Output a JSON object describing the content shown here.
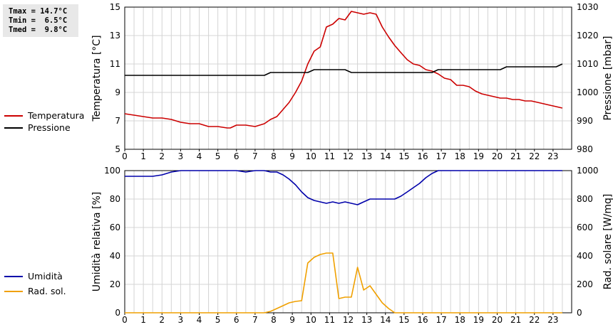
{
  "stats": {
    "tmax": "Tmax = 14.7°C",
    "tmin": "Tmin =  6.5°C",
    "tmed": "Tmed =  9.8°C"
  },
  "legend_top": [
    {
      "label": "Temperatura",
      "color": "#cc0000"
    },
    {
      "label": "Pressione",
      "color": "#000000"
    }
  ],
  "legend_bottom": [
    {
      "label": "Umidità",
      "color": "#0000aa"
    },
    {
      "label": "Rad. sol.",
      "color": "#f0a000"
    }
  ],
  "chart_data": [
    {
      "type": "line",
      "xlim": [
        0,
        24
      ],
      "x_ticks": [
        "0",
        "1",
        "2",
        "3",
        "4",
        "5",
        "6",
        "7",
        "8",
        "9",
        "10",
        "11",
        "12",
        "13",
        "14",
        "15",
        "16",
        "17",
        "18",
        "19",
        "20",
        "21",
        "22",
        "23"
      ],
      "ylabel": "Temperatura [°C]",
      "ylim": [
        5,
        15
      ],
      "y_ticks": [
        "5",
        "7",
        "9",
        "11",
        "13",
        "15"
      ],
      "y2label": "Pressione [mbar]",
      "y2lim": [
        980,
        1030
      ],
      "y2_ticks": [
        "980",
        "990",
        "1000",
        "1010",
        "1020",
        "1030"
      ],
      "grid": true,
      "series": [
        {
          "name": "Temperatura",
          "axis": "left",
          "color": "#cc0000",
          "x": [
            0,
            0.5,
            1,
            1.5,
            2,
            2.5,
            3,
            3.5,
            4,
            4.5,
            5,
            5.5,
            5.67,
            6,
            6.5,
            7,
            7.5,
            7.83,
            8.17,
            8.5,
            8.83,
            9.17,
            9.5,
            9.83,
            10.17,
            10.5,
            10.83,
            11.17,
            11.5,
            11.83,
            12.17,
            12.5,
            12.83,
            13.17,
            13.5,
            13.83,
            14.17,
            14.5,
            14.83,
            15.17,
            15.5,
            15.83,
            16.17,
            16.5,
            16.83,
            17.17,
            17.5,
            17.83,
            18.17,
            18.5,
            18.83,
            19.17,
            19.5,
            19.83,
            20.17,
            20.5,
            20.83,
            21.17,
            21.5,
            21.83,
            22.17,
            22.5,
            22.83,
            23.17,
            23.5
          ],
          "values": [
            7.5,
            7.4,
            7.3,
            7.2,
            7.2,
            7.1,
            6.9,
            6.8,
            6.8,
            6.6,
            6.6,
            6.5,
            6.5,
            6.7,
            6.7,
            6.6,
            6.8,
            7.1,
            7.3,
            7.8,
            8.3,
            9.0,
            9.8,
            11.0,
            11.9,
            12.2,
            13.6,
            13.8,
            14.2,
            14.1,
            14.7,
            14.6,
            14.5,
            14.6,
            14.5,
            13.6,
            12.9,
            12.3,
            11.8,
            11.3,
            11.0,
            10.9,
            10.6,
            10.5,
            10.3,
            10.0,
            9.9,
            9.5,
            9.5,
            9.4,
            9.1,
            8.9,
            8.8,
            8.7,
            8.6,
            8.6,
            8.5,
            8.5,
            8.4,
            8.4,
            8.3,
            8.2,
            8.1,
            8.0,
            7.9
          ],
          "values_note": ""
        },
        {
          "name": "Pressione",
          "axis": "right",
          "color": "#000000",
          "x": [
            0,
            7.5,
            7.83,
            9.83,
            10.17,
            11.83,
            12.17,
            16.5,
            16.83,
            20.17,
            20.5,
            23.17,
            23.5
          ],
          "values": [
            1006,
            1006,
            1007,
            1007,
            1008,
            1008,
            1007,
            1007,
            1008,
            1008,
            1009,
            1009,
            1010
          ]
        }
      ]
    },
    {
      "type": "line",
      "xlim": [
        0,
        24
      ],
      "x_ticks": [
        "0",
        "1",
        "2",
        "3",
        "4",
        "5",
        "6",
        "7",
        "8",
        "9",
        "10",
        "11",
        "12",
        "13",
        "14",
        "15",
        "16",
        "17",
        "18",
        "19",
        "20",
        "21",
        "22",
        "23"
      ],
      "ylabel": "Umidità relativa [%]",
      "ylim": [
        0,
        100
      ],
      "y_ticks": [
        "0",
        "20",
        "40",
        "60",
        "80",
        "100"
      ],
      "y2label": "Rad. solare [W/mq]",
      "y2lim": [
        0,
        1000
      ],
      "y2_ticks": [
        "0",
        "200",
        "400",
        "600",
        "800",
        "1000"
      ],
      "grid": true,
      "series": [
        {
          "name": "Umidità",
          "axis": "left",
          "color": "#0000aa",
          "x": [
            0,
            1.5,
            2,
            2.5,
            3,
            6,
            6.5,
            7,
            7.5,
            7.83,
            8.17,
            8.5,
            8.83,
            9.17,
            9.5,
            9.83,
            10.17,
            10.5,
            10.83,
            11.17,
            11.5,
            11.83,
            12.17,
            12.5,
            12.83,
            13.17,
            13.5,
            13.83,
            14.17,
            14.5,
            14.83,
            15.17,
            15.5,
            15.83,
            16.17,
            16.5,
            16.83,
            17.17,
            17.5,
            23.5
          ],
          "values": [
            96,
            96,
            97,
            99,
            100,
            100,
            99,
            100,
            100,
            99,
            99,
            97,
            94,
            90,
            85,
            81,
            79,
            78,
            77,
            78,
            77,
            78,
            77,
            76,
            78,
            80,
            80,
            80,
            80,
            80,
            82,
            85,
            88,
            91,
            95,
            98,
            100,
            100,
            100,
            100
          ]
        },
        {
          "name": "Rad. sol.",
          "axis": "right",
          "color": "#f0a000",
          "x": [
            0,
            7.5,
            7.83,
            8.17,
            8.5,
            8.83,
            9.17,
            9.5,
            9.83,
            10.17,
            10.5,
            10.83,
            11.17,
            11.5,
            11.83,
            12.17,
            12.5,
            12.83,
            13.17,
            13.5,
            13.83,
            14.17,
            14.5,
            14.83,
            15.17,
            15.5,
            15.83,
            16.17,
            16.5,
            16.83,
            17.17,
            23.5
          ],
          "values": [
            0,
            0,
            10,
            30,
            50,
            70,
            80,
            85,
            350,
            390,
            410,
            420,
            420,
            100,
            110,
            110,
            320,
            160,
            190,
            130,
            70,
            30,
            0,
            0,
            0,
            0,
            0,
            0,
            0,
            0,
            0,
            0
          ]
        }
      ]
    }
  ]
}
